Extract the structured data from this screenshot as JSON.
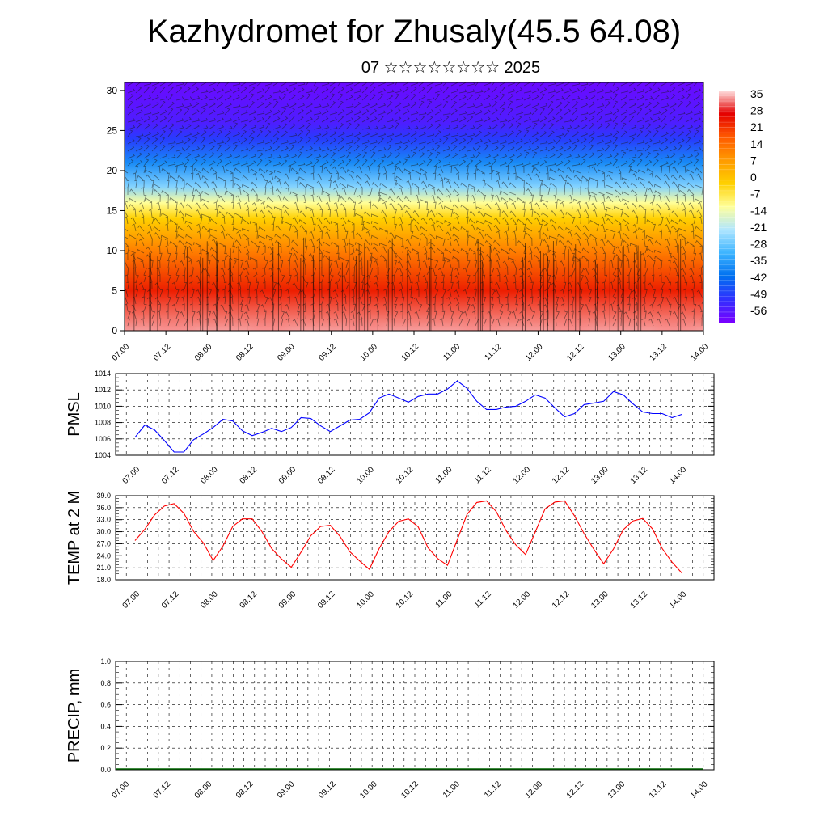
{
  "title": "Kazhydromet for Zhusaly(45.5 64.08)",
  "subtitle": "07 ☆☆☆☆☆☆☆☆ 2025",
  "x_tick_labels": [
    "07.00",
    "07.12",
    "08.00",
    "08.12",
    "09.00",
    "09.12",
    "10.00",
    "10.12",
    "11.00",
    "11.12",
    "12.00",
    "12.12",
    "13.00",
    "13.12",
    "14.00"
  ],
  "chart_data": [
    {
      "type": "heatmap",
      "name": "vertical temperature cross-section with wind barbs",
      "x_range": [
        0,
        14
      ],
      "y_ticks": [
        0,
        5,
        10,
        15,
        20,
        25,
        30
      ],
      "ylim": [
        0,
        31
      ],
      "colorbar": {
        "labels": [
          "35",
          "28",
          "21",
          "14",
          "7",
          "0",
          "-7",
          "-14",
          "-21",
          "-28",
          "-35",
          "-42",
          "-49",
          "-56"
        ],
        "colors": [
          "#ffe0e0",
          "#e40000",
          "#ff5a00",
          "#ff9a00",
          "#ffd000",
          "#ffff9a",
          "#b0e6ff",
          "#3cb4ff",
          "#0070f0",
          "#3030ff",
          "#7a00ff"
        ]
      },
      "layers": [
        {
          "level": 0,
          "temp": 33
        },
        {
          "level": 5,
          "temp": 22
        },
        {
          "level": 10,
          "temp": 8
        },
        {
          "level": 14,
          "temp": -4
        },
        {
          "level": 16,
          "temp": -10
        },
        {
          "level": 18,
          "temp": -22
        },
        {
          "level": 21,
          "temp": -34
        },
        {
          "level": 24,
          "temp": -48
        },
        {
          "level": 26,
          "temp": -54
        },
        {
          "level": 31,
          "temp": -58
        }
      ],
      "warm_spots_x": [
        1.2,
        3.5,
        5.8,
        8.6,
        10.8,
        13.3
      ]
    },
    {
      "type": "line",
      "ylabel": "PMSL",
      "color": "#0000ff",
      "ylim": [
        1004,
        1014
      ],
      "y_ticks": [
        "1004",
        "1006",
        "1008",
        "1010",
        "1012",
        "1014"
      ],
      "x": [
        0,
        0.25,
        0.5,
        0.75,
        1,
        1.25,
        1.5,
        1.75,
        2,
        2.25,
        2.5,
        2.75,
        3,
        3.25,
        3.5,
        3.75,
        4,
        4.25,
        4.5,
        4.75,
        5,
        5.25,
        5.5,
        5.75,
        6,
        6.25,
        6.5,
        6.75,
        7,
        7.25,
        7.5,
        7.75,
        8,
        8.25,
        8.5,
        8.75,
        9,
        9.25,
        9.5,
        9.75,
        10,
        10.25,
        10.5,
        10.75,
        11,
        11.25,
        11.5,
        11.75,
        12,
        12.25,
        12.5,
        12.75,
        13,
        13.25,
        13.5,
        13.75,
        14
      ],
      "values": [
        1006.2,
        1007.7,
        1007.1,
        1005.8,
        1004.4,
        1004.4,
        1005.9,
        1006.6,
        1007.4,
        1008.4,
        1008.2,
        1007.0,
        1006.4,
        1006.8,
        1007.3,
        1006.9,
        1007.4,
        1008.6,
        1008.5,
        1007.6,
        1006.9,
        1007.6,
        1008.3,
        1008.4,
        1009.2,
        1011.0,
        1011.5,
        1011.0,
        1010.5,
        1011.2,
        1011.5,
        1011.5,
        1012.1,
        1013.1,
        1012.2,
        1010.6,
        1009.6,
        1009.6,
        1009.9,
        1010.0,
        1010.6,
        1011.4,
        1011.0,
        1009.8,
        1008.7,
        1009.1,
        1010.2,
        1010.4,
        1010.6,
        1011.8,
        1011.4,
        1010.3,
        1009.3,
        1009.1,
        1009.1,
        1008.6,
        1009.0
      ]
    },
    {
      "type": "line",
      "ylabel": "TEMP at 2 M",
      "color": "#ff0000",
      "ylim": [
        18,
        39
      ],
      "y_ticks": [
        "18.0",
        "21.0",
        "24.0",
        "27.0",
        "30.0",
        "33.0",
        "36.0",
        "39.0"
      ],
      "x": [
        0,
        0.25,
        0.5,
        0.75,
        1,
        1.25,
        1.5,
        1.75,
        2,
        2.25,
        2.5,
        2.75,
        3,
        3.25,
        3.5,
        3.75,
        4,
        4.25,
        4.5,
        4.75,
        5,
        5.25,
        5.5,
        5.75,
        6,
        6.25,
        6.5,
        6.75,
        7,
        7.25,
        7.5,
        7.75,
        8,
        8.25,
        8.5,
        8.75,
        9,
        9.25,
        9.5,
        9.75,
        10,
        10.25,
        10.5,
        10.75,
        11,
        11.25,
        11.5,
        11.75,
        12,
        12.25,
        12.5,
        12.75,
        13,
        13.25,
        13.5,
        13.75,
        14
      ],
      "values": [
        27.8,
        30.6,
        34.2,
        36.4,
        37.0,
        34.6,
        30.1,
        27.2,
        22.8,
        26.4,
        31.3,
        33.2,
        33.2,
        30.0,
        25.8,
        23.2,
        21.1,
        24.9,
        29.0,
        31.3,
        31.6,
        28.8,
        25.0,
        22.7,
        20.6,
        25.8,
        30.0,
        32.6,
        33.2,
        31.2,
        26.0,
        23.3,
        21.6,
        28.0,
        34.3,
        37.3,
        37.7,
        35.0,
        30.3,
        26.7,
        24.3,
        30.0,
        35.7,
        37.4,
        37.7,
        34.0,
        29.5,
        25.6,
        22.0,
        25.7,
        30.5,
        32.7,
        33.3,
        30.7,
        25.8,
        22.4,
        19.7
      ]
    },
    {
      "type": "bar",
      "ylabel": "PRECIP, mm",
      "ylim": [
        0,
        1
      ],
      "y_ticks": [
        "0.0",
        "0.2",
        "0.4",
        "0.6",
        "0.8",
        "1.0"
      ],
      "values": []
    }
  ]
}
